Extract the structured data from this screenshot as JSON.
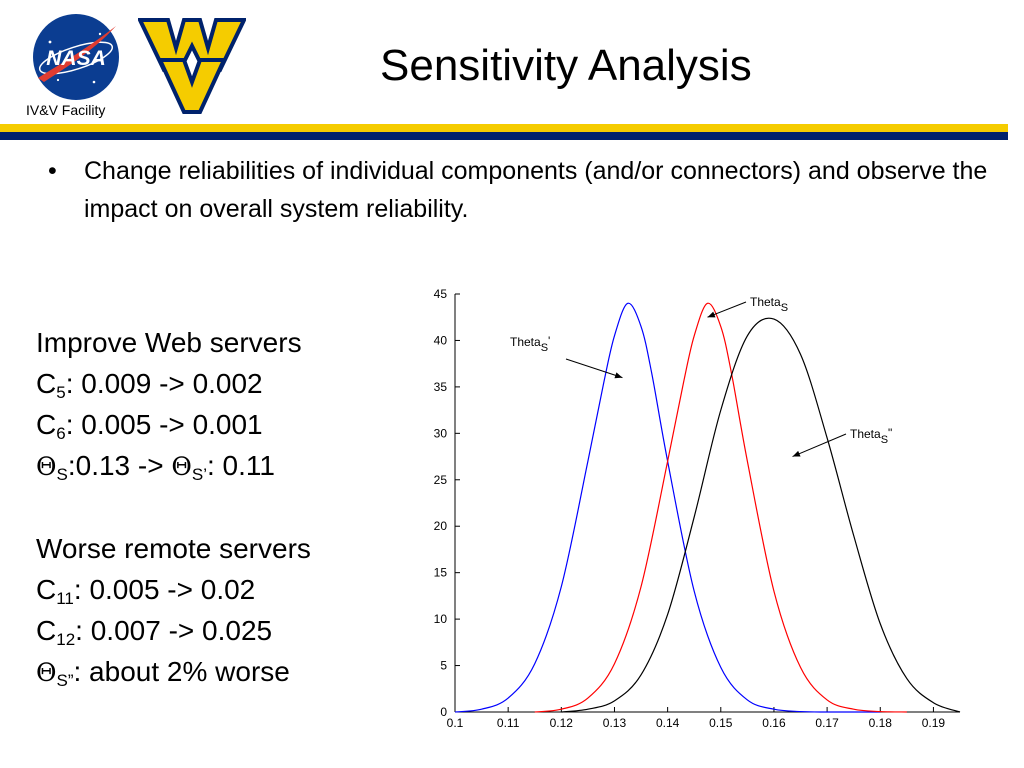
{
  "header": {
    "title": "Sensitivity Analysis",
    "facility": "IV&V Facility",
    "nasa_logo_text": "NASA",
    "colors": {
      "gold": "#f5cc00",
      "navy": "#00226c",
      "nasa_blue": "#0b3d91",
      "nasa_red": "#e03c31"
    }
  },
  "bullet": {
    "symbol": "•",
    "text": "Change reliabilities of individual components (and/or connectors) and observe the impact on overall system reliability."
  },
  "improve": {
    "heading": "Improve Web servers",
    "c5_label": "C",
    "c5_sub": "5",
    "c5_value": ": 0.009 -> 0.002",
    "c6_label": "C",
    "c6_sub": "6",
    "c6_value": ": 0.005 -> 0.001",
    "theta_symbol": "Θ",
    "theta_s_sub": "S",
    "theta_mid": ":0.13 -> ",
    "theta_s1_sub": "S’",
    "theta_end": ": 0.11"
  },
  "worse": {
    "heading": "Worse remote servers",
    "c11_label": "C",
    "c11_sub": "11",
    "c11_value": ": 0.005 -> 0.02",
    "c12_label": "C",
    "c12_sub": "12",
    "c12_value": ": 0.007 -> 0.025",
    "theta_symbol": "Θ",
    "theta_s2_sub": "S”",
    "theta_end": ": about 2% worse"
  },
  "chart_data": {
    "type": "line",
    "xlim": [
      0.1,
      0.195
    ],
    "ylim": [
      0,
      45
    ],
    "xticks": [
      0.1,
      0.11,
      0.12,
      0.13,
      0.14,
      0.15,
      0.16,
      0.17,
      0.18,
      0.19
    ],
    "xtick_labels": [
      "0.1",
      "0.11",
      "0.12",
      "0.13",
      "0.14",
      "0.15",
      "0.16",
      "0.17",
      "0.18",
      "0.19"
    ],
    "yticks": [
      0,
      5,
      10,
      15,
      20,
      25,
      30,
      35,
      40,
      45
    ],
    "ytick_labels": [
      "0",
      "5",
      "10",
      "15",
      "20",
      "25",
      "30",
      "35",
      "40",
      "45"
    ],
    "grid": false,
    "series": [
      {
        "name": "ThetaS'",
        "color": "#0000ff",
        "x": [
          0.1,
          0.105,
          0.11,
          0.115,
          0.12,
          0.125,
          0.128,
          0.13,
          0.1325,
          0.135,
          0.137,
          0.14,
          0.145,
          0.15,
          0.155,
          0.16,
          0.165,
          0.17,
          0.18
        ],
        "y": [
          0,
          0.3,
          1.5,
          5.2,
          13.5,
          27,
          35.5,
          40.5,
          44,
          41.5,
          36.5,
          27,
          13,
          4.8,
          1.3,
          0.3,
          0.05,
          0,
          0
        ]
      },
      {
        "name": "ThetaS",
        "color": "#ff0000",
        "x": [
          0.115,
          0.12,
          0.125,
          0.13,
          0.135,
          0.14,
          0.143,
          0.145,
          0.1475,
          0.15,
          0.152,
          0.155,
          0.16,
          0.165,
          0.17,
          0.175,
          0.18,
          0.185
        ],
        "y": [
          0,
          0.3,
          1.5,
          5.2,
          13.5,
          27,
          35.5,
          40.5,
          44,
          41.5,
          36.5,
          27,
          13,
          4.8,
          1.3,
          0.3,
          0.05,
          0
        ]
      },
      {
        "name": "ThetaS\"",
        "color": "#000000",
        "x": [
          0.12,
          0.125,
          0.13,
          0.135,
          0.14,
          0.145,
          0.15,
          0.155,
          0.16,
          0.165,
          0.17,
          0.175,
          0.18,
          0.185,
          0.19,
          0.195
        ],
        "y": [
          0,
          0.3,
          1.2,
          4.0,
          10.5,
          21,
          32.5,
          40.5,
          42.3,
          38.5,
          29.5,
          19,
          9.5,
          3.6,
          1.0,
          0
        ]
      }
    ],
    "annotations": [
      {
        "base": "Theta",
        "sub": "S",
        "suffix": "'",
        "target_x": 0.1315,
        "target_y": 36
      },
      {
        "base": "Theta",
        "sub": "S",
        "suffix": "",
        "target_x": 0.1475,
        "target_y": 42.5
      },
      {
        "base": "Theta",
        "sub": "S",
        "suffix": "\"",
        "target_x": 0.1635,
        "target_y": 27.5
      }
    ]
  }
}
